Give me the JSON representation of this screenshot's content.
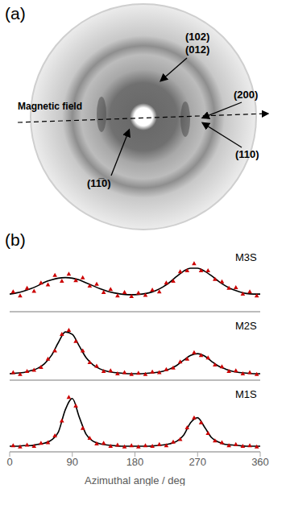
{
  "panel_a": {
    "letter": "(a)",
    "field_label": "Magnetic field",
    "reflections": [
      "(102)",
      "(012)",
      "(200)",
      "(110)",
      "(11̅0)"
    ]
  },
  "panel_b": {
    "letter": "(b)"
  },
  "chart_data": [
    {
      "type": "scatter",
      "title": "M3S",
      "xlim": [
        0,
        360
      ],
      "xticks": [
        0,
        90,
        180,
        270,
        360
      ],
      "ylim": [
        0,
        1
      ],
      "tick_labels": false,
      "series": [
        {
          "type": "scatter",
          "color": "#cc0000",
          "marker": "triangle",
          "x": [
            5,
            15,
            25,
            35,
            45,
            55,
            65,
            75,
            85,
            95,
            105,
            115,
            125,
            135,
            145,
            155,
            165,
            175,
            185,
            195,
            205,
            215,
            225,
            235,
            245,
            255,
            265,
            275,
            285,
            295,
            305,
            315,
            325,
            335,
            345,
            355
          ],
          "values": [
            0.34,
            0.27,
            0.4,
            0.35,
            0.49,
            0.46,
            0.62,
            0.52,
            0.64,
            0.53,
            0.58,
            0.44,
            0.47,
            0.33,
            0.38,
            0.27,
            0.33,
            0.26,
            0.32,
            0.28,
            0.37,
            0.34,
            0.49,
            0.52,
            0.68,
            0.7,
            0.82,
            0.7,
            0.7,
            0.55,
            0.51,
            0.4,
            0.41,
            0.3,
            0.34,
            0.27
          ]
        },
        {
          "type": "line",
          "color": "#000000",
          "x": [
            0,
            10,
            20,
            30,
            40,
            50,
            60,
            70,
            80,
            90,
            100,
            110,
            120,
            130,
            140,
            150,
            160,
            170,
            180,
            190,
            200,
            210,
            220,
            230,
            240,
            250,
            260,
            270,
            280,
            290,
            300,
            310,
            320,
            330,
            340,
            350,
            360
          ],
          "values": [
            0.3,
            0.32,
            0.35,
            0.39,
            0.44,
            0.5,
            0.54,
            0.57,
            0.58,
            0.57,
            0.54,
            0.49,
            0.44,
            0.39,
            0.35,
            0.32,
            0.3,
            0.29,
            0.29,
            0.3,
            0.32,
            0.36,
            0.42,
            0.5,
            0.6,
            0.69,
            0.74,
            0.74,
            0.69,
            0.61,
            0.52,
            0.44,
            0.38,
            0.34,
            0.31,
            0.3,
            0.3
          ]
        }
      ]
    },
    {
      "type": "scatter",
      "title": "M2S",
      "xlim": [
        0,
        360
      ],
      "xticks": [
        0,
        90,
        180,
        270,
        360
      ],
      "ylim": [
        0,
        1
      ],
      "tick_labels": false,
      "series": [
        {
          "type": "scatter",
          "color": "#cc0000",
          "marker": "triangle",
          "x": [
            5,
            15,
            25,
            35,
            45,
            55,
            65,
            75,
            85,
            95,
            105,
            115,
            125,
            135,
            145,
            155,
            165,
            175,
            185,
            195,
            205,
            215,
            225,
            235,
            245,
            255,
            265,
            275,
            285,
            295,
            305,
            315,
            325,
            335,
            345,
            355
          ],
          "values": [
            0.13,
            0.1,
            0.15,
            0.17,
            0.22,
            0.36,
            0.5,
            0.78,
            0.85,
            0.66,
            0.5,
            0.3,
            0.24,
            0.15,
            0.16,
            0.11,
            0.13,
            0.1,
            0.12,
            0.1,
            0.14,
            0.13,
            0.18,
            0.21,
            0.31,
            0.36,
            0.47,
            0.42,
            0.38,
            0.26,
            0.23,
            0.15,
            0.16,
            0.11,
            0.13,
            0.1
          ]
        },
        {
          "type": "line",
          "color": "#000000",
          "x": [
            0,
            10,
            20,
            30,
            40,
            50,
            60,
            70,
            80,
            90,
            100,
            110,
            120,
            130,
            140,
            150,
            160,
            170,
            180,
            190,
            200,
            210,
            220,
            230,
            240,
            250,
            260,
            270,
            280,
            290,
            300,
            310,
            320,
            330,
            340,
            350,
            360
          ],
          "values": [
            0.11,
            0.12,
            0.13,
            0.16,
            0.2,
            0.28,
            0.42,
            0.64,
            0.82,
            0.78,
            0.58,
            0.38,
            0.26,
            0.19,
            0.15,
            0.13,
            0.12,
            0.11,
            0.11,
            0.11,
            0.12,
            0.13,
            0.15,
            0.19,
            0.25,
            0.34,
            0.42,
            0.45,
            0.41,
            0.32,
            0.24,
            0.19,
            0.15,
            0.13,
            0.12,
            0.11,
            0.11
          ]
        }
      ]
    },
    {
      "type": "scatter",
      "title": "M1S",
      "xlabel": "Azimuthal angle / deg",
      "xlim": [
        0,
        360
      ],
      "xticks": [
        0,
        90,
        180,
        270,
        360
      ],
      "ylim": [
        0,
        1
      ],
      "tick_labels": "x",
      "series": [
        {
          "type": "scatter",
          "color": "#cc0000",
          "marker": "triangle",
          "x": [
            5,
            15,
            25,
            35,
            45,
            55,
            65,
            75,
            85,
            95,
            105,
            115,
            125,
            135,
            145,
            155,
            165,
            175,
            185,
            195,
            205,
            215,
            225,
            235,
            245,
            255,
            265,
            275,
            285,
            295,
            305,
            315,
            325,
            335,
            345,
            355
          ],
          "values": [
            0.1,
            0.08,
            0.11,
            0.09,
            0.14,
            0.15,
            0.26,
            0.5,
            0.88,
            0.74,
            0.38,
            0.22,
            0.13,
            0.14,
            0.09,
            0.11,
            0.08,
            0.1,
            0.08,
            0.1,
            0.09,
            0.12,
            0.1,
            0.16,
            0.2,
            0.39,
            0.55,
            0.47,
            0.3,
            0.18,
            0.15,
            0.1,
            0.12,
            0.09,
            0.1,
            0.08
          ]
        },
        {
          "type": "line",
          "color": "#000000",
          "x": [
            0,
            10,
            20,
            30,
            40,
            50,
            60,
            70,
            80,
            90,
            100,
            110,
            120,
            130,
            140,
            150,
            160,
            170,
            180,
            190,
            200,
            210,
            220,
            230,
            240,
            250,
            260,
            270,
            280,
            290,
            300,
            310,
            320,
            330,
            340,
            350,
            360
          ],
          "values": [
            0.09,
            0.09,
            0.1,
            0.1,
            0.12,
            0.14,
            0.19,
            0.32,
            0.68,
            0.86,
            0.56,
            0.28,
            0.17,
            0.13,
            0.11,
            0.1,
            0.09,
            0.09,
            0.09,
            0.09,
            0.09,
            0.1,
            0.11,
            0.13,
            0.17,
            0.27,
            0.47,
            0.55,
            0.4,
            0.23,
            0.16,
            0.12,
            0.11,
            0.1,
            0.09,
            0.09,
            0.09
          ]
        }
      ]
    }
  ]
}
